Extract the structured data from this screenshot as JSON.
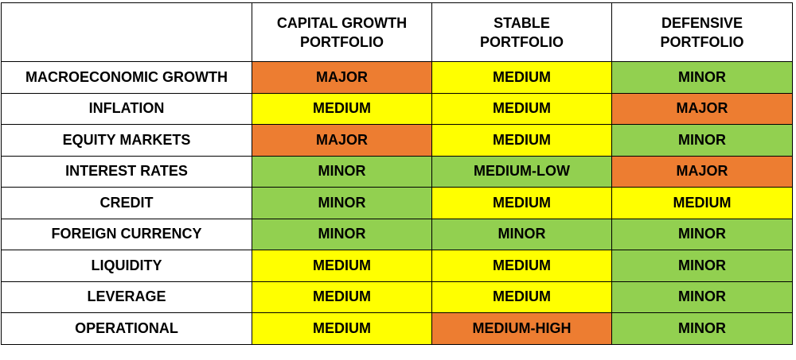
{
  "colors": {
    "MAJOR": "#ED7D31",
    "MEDIUM-HIGH": "#ED7D31",
    "MEDIUM": "#FFFF00",
    "MEDIUM-LOW": "#92D050",
    "MINOR": "#92D050"
  },
  "table": {
    "corner": "",
    "headers": [
      [
        "CAPITAL GROWTH",
        "PORTFOLIO"
      ],
      [
        "STABLE",
        "PORTFOLIO"
      ],
      [
        "DEFENSIVE",
        "PORTFOLIO"
      ]
    ],
    "rows": [
      {
        "label": "MACROECONOMIC GROWTH",
        "cells": [
          "MAJOR",
          "MEDIUM",
          "MINOR"
        ]
      },
      {
        "label": "INFLATION",
        "cells": [
          "MEDIUM",
          "MEDIUM",
          "MAJOR"
        ]
      },
      {
        "label": "EQUITY MARKETS",
        "cells": [
          "MAJOR",
          "MEDIUM",
          "MINOR"
        ]
      },
      {
        "label": "INTEREST RATES",
        "cells": [
          "MINOR",
          "MEDIUM-LOW",
          "MAJOR"
        ]
      },
      {
        "label": "CREDIT",
        "cells": [
          "MINOR",
          "MEDIUM",
          "MEDIUM"
        ]
      },
      {
        "label": "FOREIGN CURRENCY",
        "cells": [
          "MINOR",
          "MINOR",
          "MINOR"
        ]
      },
      {
        "label": "LIQUIDITY",
        "cells": [
          "MEDIUM",
          "MEDIUM",
          "MINOR"
        ]
      },
      {
        "label": "LEVERAGE",
        "cells": [
          "MEDIUM",
          "MEDIUM",
          "MINOR"
        ]
      },
      {
        "label": "OPERATIONAL",
        "cells": [
          "MEDIUM",
          "MEDIUM-HIGH",
          "MINOR"
        ]
      }
    ]
  }
}
